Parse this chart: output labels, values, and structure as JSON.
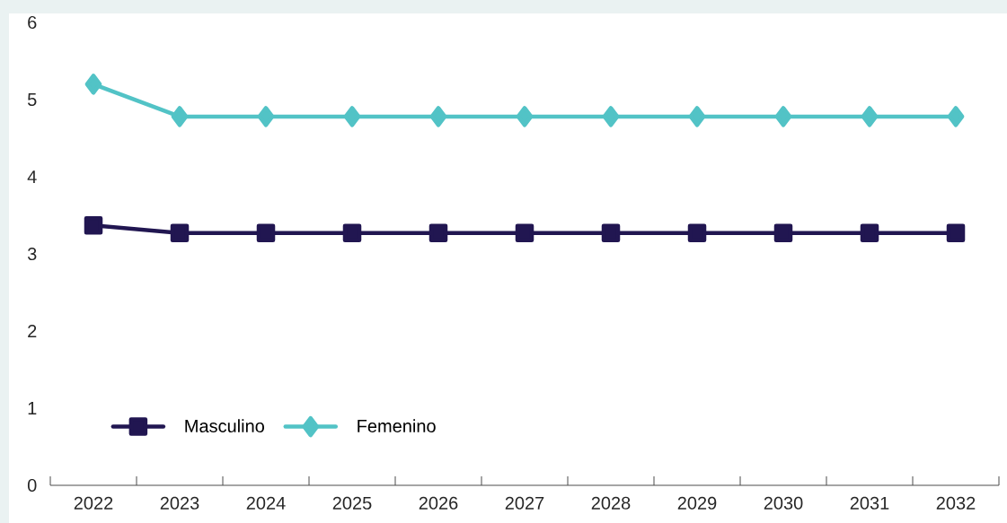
{
  "chart_data": {
    "type": "line",
    "categories": [
      "2022",
      "2023",
      "2024",
      "2025",
      "2026",
      "2027",
      "2028",
      "2029",
      "2030",
      "2031",
      "2032"
    ],
    "series": [
      {
        "name": "Masculino",
        "color": "#211651",
        "marker": "square",
        "values": [
          3.37,
          3.27,
          3.27,
          3.27,
          3.27,
          3.27,
          3.27,
          3.27,
          3.27,
          3.27,
          3.27
        ]
      },
      {
        "name": "Femenino",
        "color": "#52c3c6",
        "marker": "diamond",
        "values": [
          5.2,
          4.78,
          4.78,
          4.78,
          4.78,
          4.78,
          4.78,
          4.78,
          4.78,
          4.78,
          4.78
        ]
      }
    ],
    "ylim": [
      0,
      6
    ],
    "yticks": [
      0,
      1,
      2,
      3,
      4,
      5,
      6
    ],
    "grid": false,
    "legend": "bottom left"
  }
}
